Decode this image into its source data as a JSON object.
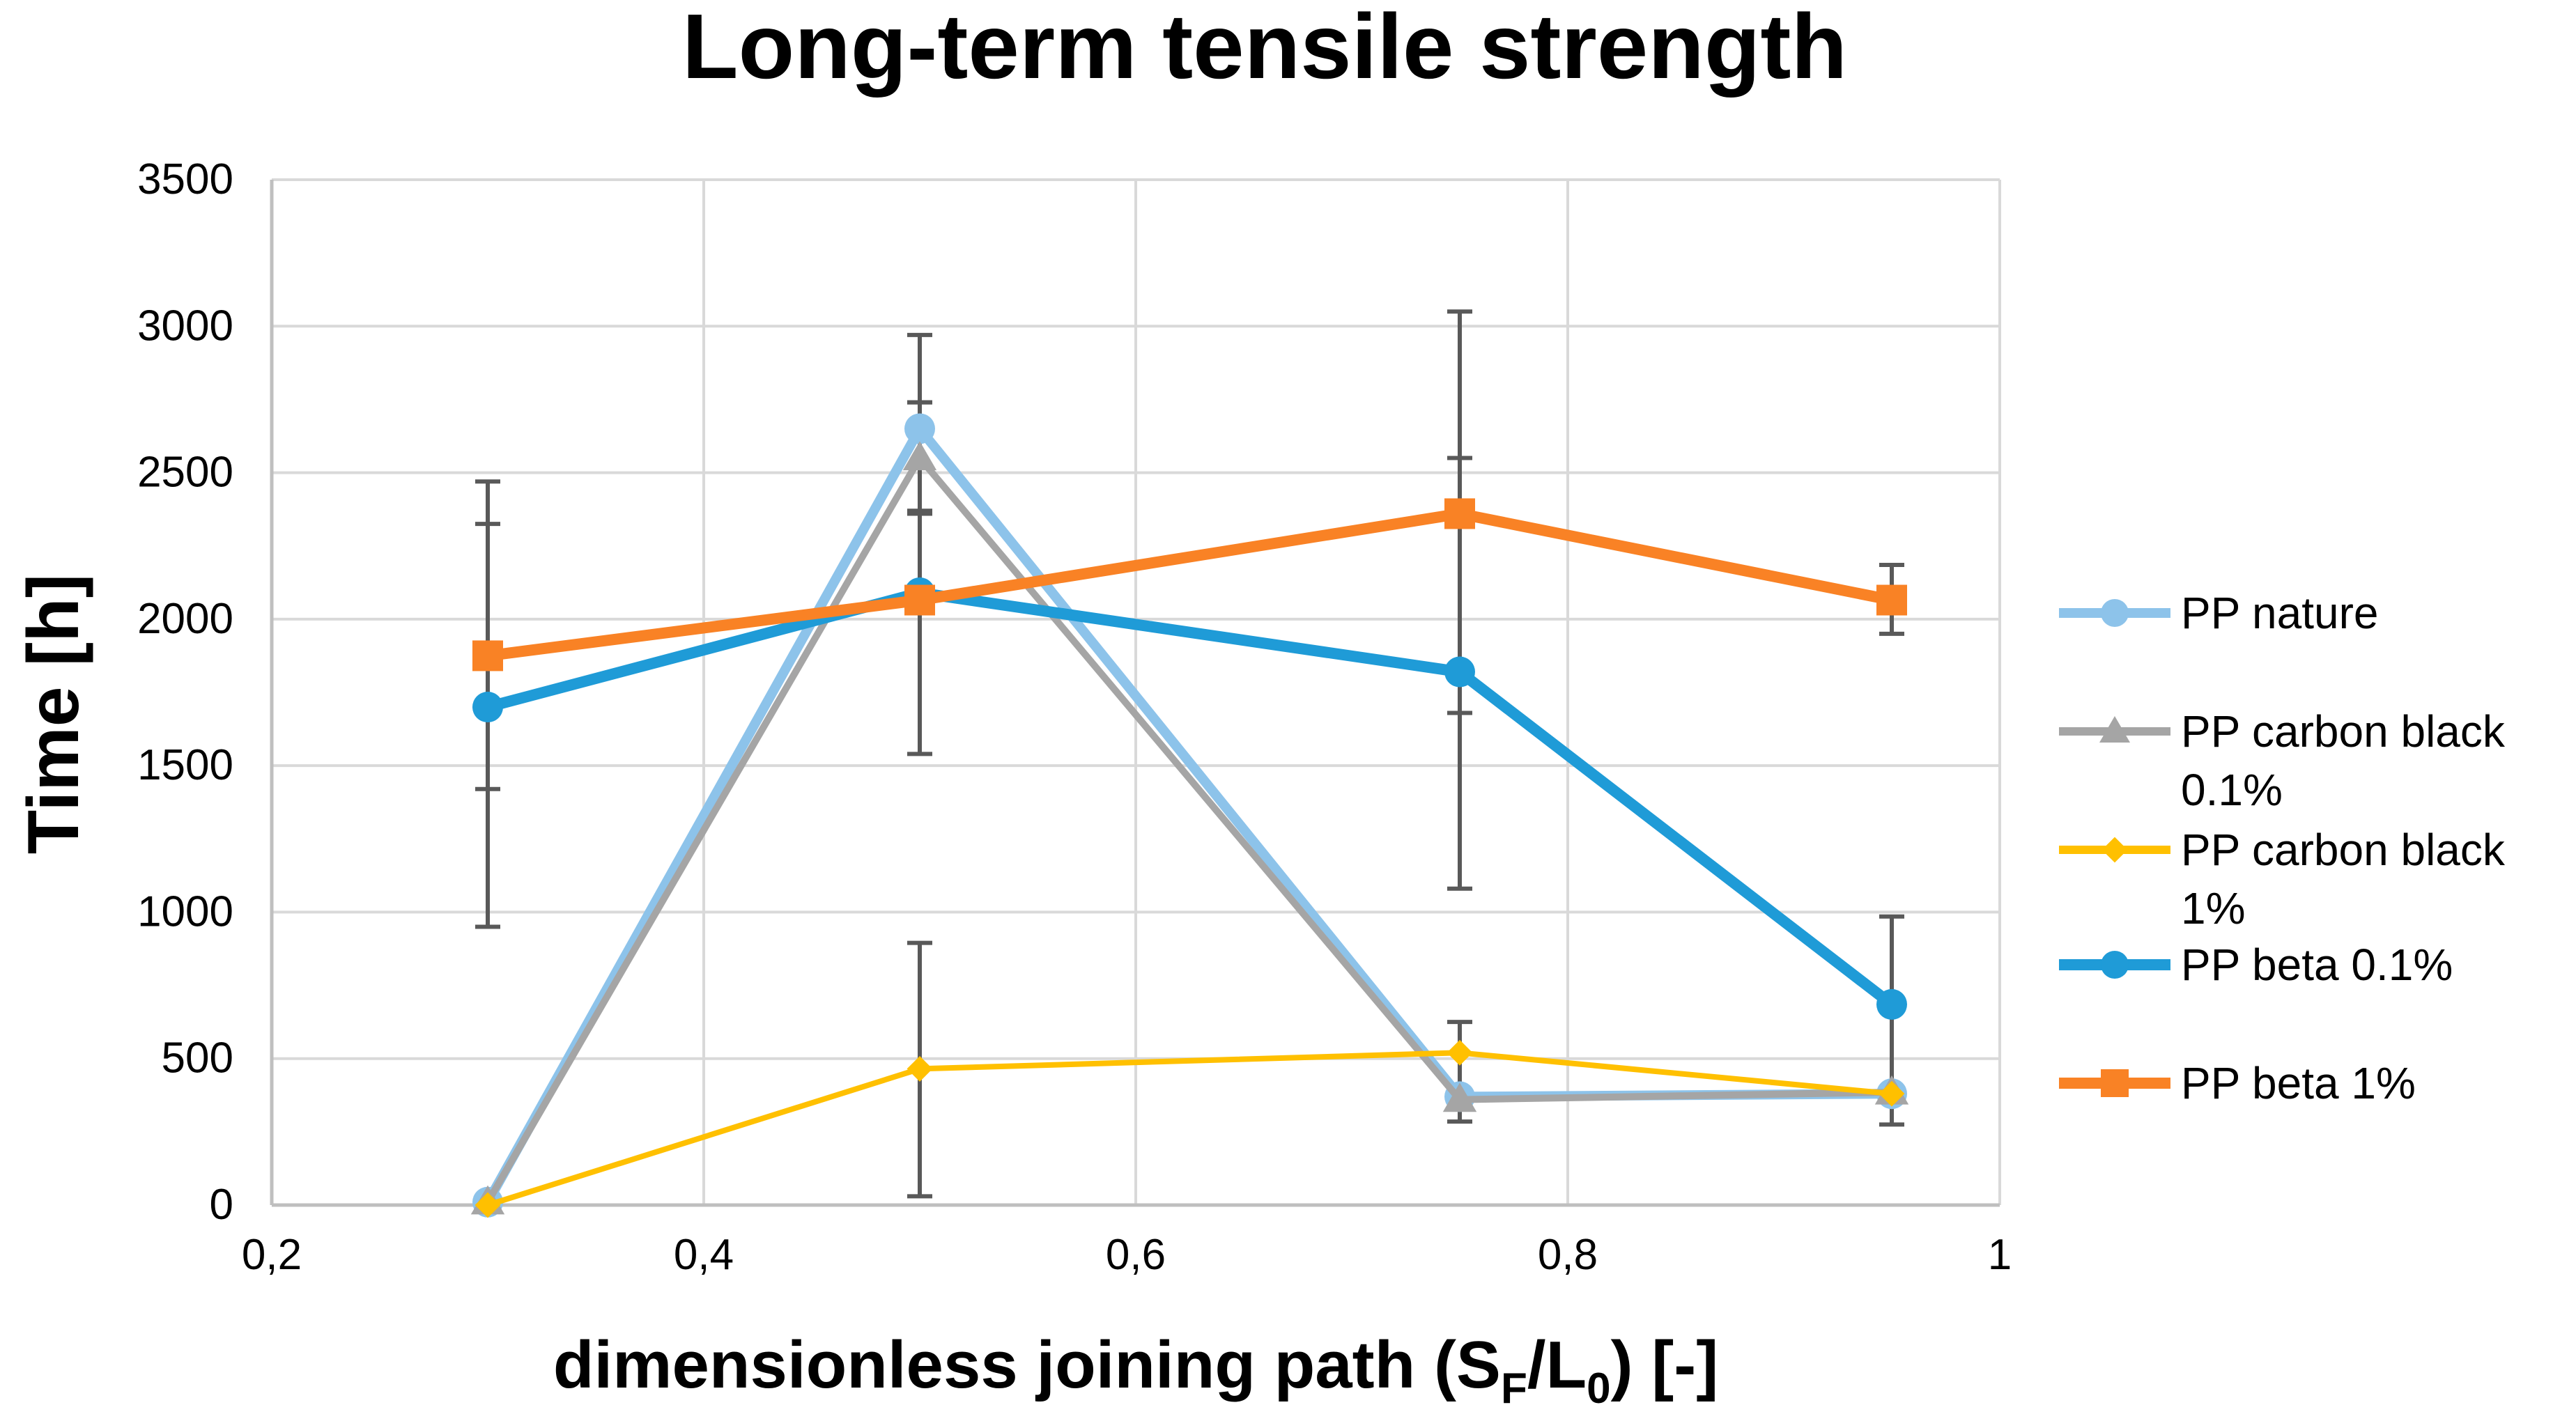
{
  "chart_data": {
    "type": "line",
    "title": "Long-term tensile strength",
    "xlabel": "dimensionless joining path (S_F/L_0) [-]",
    "xlabel_parts": [
      "dimensionless joining path (S",
      "F",
      "/L",
      "0",
      ") [-]"
    ],
    "ylabel": "Time [h]",
    "xlim": [
      0.2,
      1
    ],
    "ylim": [
      0,
      3500
    ],
    "x_ticks": [
      0.2,
      0.4,
      0.6,
      0.8,
      1
    ],
    "x_tick_labels": [
      "0,2",
      "0,4",
      "0,6",
      "0,8",
      "1"
    ],
    "y_ticks": [
      0,
      500,
      1000,
      1500,
      2000,
      2500,
      3000,
      3500
    ],
    "y_tick_labels": [
      "0",
      "500",
      "1000",
      "1500",
      "2000",
      "2500",
      "3000",
      "3500"
    ],
    "grid": true,
    "legend_position": "right",
    "x": [
      0.3,
      0.5,
      0.75,
      0.95
    ],
    "series": [
      {
        "name": "PP nature",
        "legend_lines": [
          "PP nature"
        ],
        "color": "#8DC3EA",
        "marker": "circle",
        "line_width": 14,
        "values": [
          10,
          2650,
          370,
          380
        ],
        "errors": [
          null,
          [
            2740,
            2370
          ],
          null,
          null
        ]
      },
      {
        "name": "PP carbon black 0.1%",
        "legend_lines": [
          "PP carbon black",
          "0.1%"
        ],
        "color": "#A5A5A5",
        "marker": "triangle",
        "line_width": 10,
        "values": [
          10,
          2550,
          360,
          385
        ],
        "errors": [
          null,
          null,
          null,
          null
        ]
      },
      {
        "name": "PP carbon black 1%",
        "legend_lines": [
          "PP carbon black",
          "1%"
        ],
        "color": "#FFC000",
        "marker": "diamond",
        "line_width": 8,
        "values": [
          0,
          465,
          520,
          380
        ],
        "errors": [
          null,
          [
            895,
            30
          ],
          [
            625,
            285
          ],
          null
        ]
      },
      {
        "name": "PP beta 0.1%",
        "legend_lines": [
          "PP beta 0.1%"
        ],
        "color": "#1F9BD7",
        "marker": "circle",
        "line_width": 16,
        "values": [
          1700,
          2090,
          1820,
          685
        ],
        "errors": [
          [
            2325,
            1420
          ],
          [
            2740,
            1540
          ],
          [
            3050,
            1080
          ],
          [
            985,
            275
          ]
        ]
      },
      {
        "name": "PP beta 1%",
        "legend_lines": [
          "PP beta 1%"
        ],
        "color": "#F98225",
        "marker": "square",
        "line_width": 16,
        "values": [
          1875,
          2065,
          2360,
          2065
        ],
        "errors": [
          [
            2470,
            950
          ],
          [
            2970,
            2360
          ],
          [
            2550,
            1680
          ],
          [
            2185,
            1950
          ]
        ]
      }
    ]
  }
}
